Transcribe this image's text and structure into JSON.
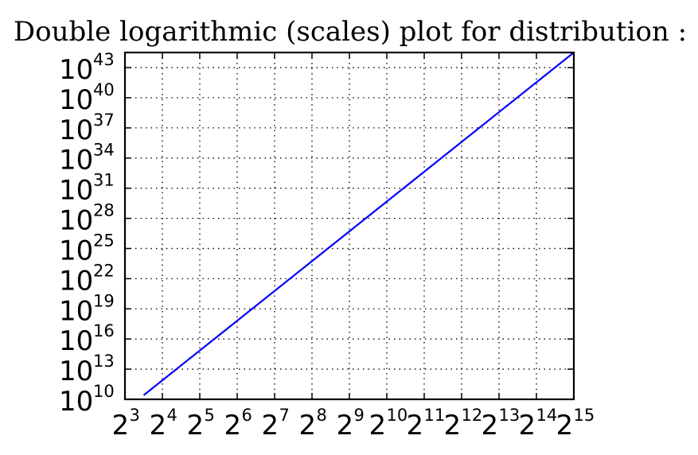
{
  "chart_data": {
    "type": "line",
    "title": "Double logarithmic (scales) plot for distribution :",
    "xscale": "log2",
    "yscale": "log10",
    "xlim_exp": [
      3,
      15
    ],
    "ylim_exp": [
      10,
      44.5
    ],
    "x_ticks": [
      {
        "base": "2",
        "exp": "3"
      },
      {
        "base": "2",
        "exp": "4"
      },
      {
        "base": "2",
        "exp": "5"
      },
      {
        "base": "2",
        "exp": "6"
      },
      {
        "base": "2",
        "exp": "7"
      },
      {
        "base": "2",
        "exp": "8"
      },
      {
        "base": "2",
        "exp": "9"
      },
      {
        "base": "2",
        "exp": "10"
      },
      {
        "base": "2",
        "exp": "11"
      },
      {
        "base": "2",
        "exp": "12"
      },
      {
        "base": "2",
        "exp": "13"
      },
      {
        "base": "2",
        "exp": "14"
      },
      {
        "base": "2",
        "exp": "15"
      }
    ],
    "y_ticks": [
      {
        "base": "10",
        "exp": "10"
      },
      {
        "base": "10",
        "exp": "13"
      },
      {
        "base": "10",
        "exp": "16"
      },
      {
        "base": "10",
        "exp": "19"
      },
      {
        "base": "10",
        "exp": "22"
      },
      {
        "base": "10",
        "exp": "25"
      },
      {
        "base": "10",
        "exp": "28"
      },
      {
        "base": "10",
        "exp": "31"
      },
      {
        "base": "10",
        "exp": "34"
      },
      {
        "base": "10",
        "exp": "37"
      },
      {
        "base": "10",
        "exp": "40"
      },
      {
        "base": "10",
        "exp": "43"
      }
    ],
    "grid": true,
    "series": [
      {
        "color": "#0000ff",
        "x_log2": [
          3.5,
          15
        ],
        "y_log10": [
          10.4,
          44.5
        ]
      }
    ]
  }
}
